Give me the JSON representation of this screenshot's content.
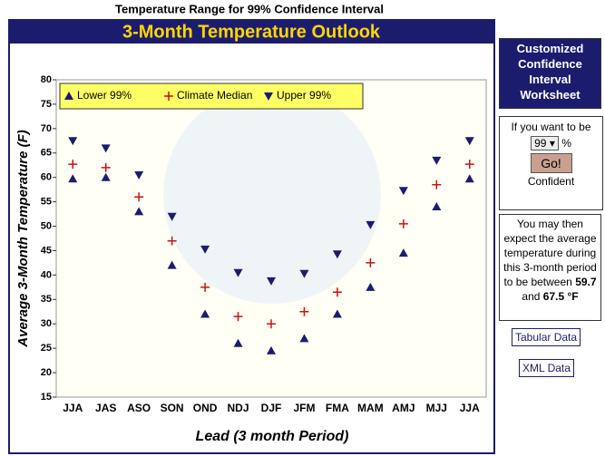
{
  "page_title": "Temperature Range for 99% Confidence Interval",
  "chart_data": {
    "type": "scatter",
    "title": "3-Month Temperature Outlook",
    "x_label": "Lead (3 month Period)",
    "y_label": "Average 3-Month Temperature (F)",
    "categories": [
      "JJA",
      "JAS",
      "ASO",
      "SON",
      "OND",
      "NDJ",
      "DJF",
      "JFM",
      "FMA",
      "MAM",
      "AMJ",
      "MJJ",
      "JJA"
    ],
    "series": [
      {
        "name": "Lower 99%",
        "color": "#1c1c6e",
        "marker": "triangle-up",
        "values": [
          59.7,
          60,
          53,
          42,
          32,
          26,
          24.5,
          27,
          32,
          37.5,
          44.5,
          54,
          59.7
        ]
      },
      {
        "name": "Climate Median",
        "color": "#cc1111",
        "marker": "plus",
        "values": [
          62.7,
          62,
          56,
          47,
          37.5,
          31.5,
          30,
          32.5,
          36.5,
          42.5,
          50.5,
          58.5,
          62.7
        ]
      },
      {
        "name": "Upper 99%",
        "color": "#1c1c6e",
        "marker": "triangle-down",
        "values": [
          67.5,
          66,
          60.5,
          52,
          45.3,
          40.5,
          38.8,
          40.3,
          44.3,
          50.3,
          57.3,
          63.5,
          67.5
        ]
      }
    ],
    "ylim": [
      15,
      80
    ],
    "yticks": [
      15,
      20,
      25,
      30,
      35,
      40,
      45,
      50,
      55,
      60,
      65,
      70,
      75,
      80
    ],
    "grid": false,
    "legend": "top-left"
  },
  "sidebar": {
    "heading": "Customized Confidence Interval Worksheet",
    "prompt": "If you want to be",
    "level": "99",
    "percent": "%",
    "button": "Go!",
    "confident": "Confident",
    "result_text": "You may then expect the average temperature during this 3-month period to be between",
    "low": "59.7",
    "and": "and",
    "high": "67.5",
    "unit": "°F",
    "links": [
      "Tabular Data",
      "XML Data"
    ]
  }
}
